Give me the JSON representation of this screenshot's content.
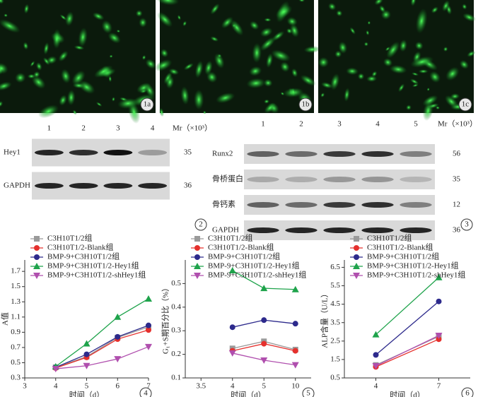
{
  "figure": {
    "images": [
      {
        "label": "1a"
      },
      {
        "label": "1b"
      },
      {
        "label": "1c"
      }
    ],
    "blots": [
      {
        "label": "2",
        "lanes": [
          "1",
          "2",
          "3",
          "4"
        ],
        "mr": "Mr（×10³）",
        "rows": [
          {
            "name": "Hey1",
            "mr": "35"
          },
          {
            "name": "GAPDH",
            "mr": "36"
          }
        ]
      },
      {
        "label": "3",
        "lanes": [
          "1",
          "2",
          "3",
          "4",
          "5"
        ],
        "mr": "Mr（×10³）",
        "rows": [
          {
            "name": "Runx2",
            "mr": "56"
          },
          {
            "name": "骨桥蛋白",
            "mr": "35"
          },
          {
            "name": "骨钙素",
            "mr": "12"
          },
          {
            "name": "GAPDH",
            "mr": "36"
          }
        ]
      }
    ]
  },
  "chart_data": [
    {
      "type": "line",
      "panel": "4",
      "ylabel": "A值",
      "xlabel": "时间（d）",
      "x": [
        4,
        5,
        6,
        7
      ],
      "xlim": [
        3,
        7
      ],
      "xticks": [
        3,
        4,
        5,
        6,
        7
      ],
      "ylim": [
        0.3,
        1.85
      ],
      "yticks": [
        0.3,
        0.5,
        0.7,
        0.9,
        1.1,
        1.3,
        1.5,
        1.7
      ],
      "series": [
        {
          "name": "C3H10T1/2组",
          "color": "#9a9a9a",
          "marker": "square",
          "values": [
            0.44,
            0.58,
            0.83,
            0.97
          ]
        },
        {
          "name": "C3H10T1/2-Blank组",
          "color": "#e5302d",
          "marker": "circle",
          "values": [
            0.43,
            0.57,
            0.81,
            0.93
          ]
        },
        {
          "name": "BMP-9+C3H10T1/2组",
          "color": "#2d2a8c",
          "marker": "circle",
          "values": [
            0.44,
            0.61,
            0.84,
            0.99
          ]
        },
        {
          "name": "BMP-9+C3H10T1/2-Hey1组",
          "color": "#1ea34b",
          "marker": "triangle",
          "values": [
            0.45,
            0.75,
            1.1,
            1.34
          ]
        },
        {
          "name": "BMP-9+C3H10T1/2-shHey1组",
          "color": "#b04fae",
          "marker": "down",
          "values": [
            0.42,
            0.46,
            0.55,
            0.71
          ]
        }
      ]
    },
    {
      "type": "line",
      "panel": "5",
      "ylabel": "G₁+S期百分比（%）",
      "xlabel": "时间（d）",
      "categories": [
        "3.5",
        "4",
        "5",
        "10"
      ],
      "ylim": [
        0.1,
        0.6
      ],
      "yticks": [
        0.1,
        0.2,
        0.3,
        0.4,
        0.5
      ],
      "series": [
        {
          "name": "C3H10T1/2组",
          "color": "#9a9a9a",
          "marker": "square",
          "values": [
            null,
            0.225,
            0.255,
            0.22
          ]
        },
        {
          "name": "C3H10T1/2-Blank组",
          "color": "#e5302d",
          "marker": "circle",
          "values": [
            null,
            0.215,
            0.245,
            0.215
          ]
        },
        {
          "name": "BMP-9+C3H10T1/2组",
          "color": "#2d2a8c",
          "marker": "circle",
          "values": [
            null,
            0.315,
            0.345,
            0.33
          ]
        },
        {
          "name": "BMP-9+C3H10T1/2-Hey1组",
          "color": "#1ea34b",
          "marker": "triangle",
          "values": [
            null,
            0.555,
            0.48,
            0.475
          ]
        },
        {
          "name": "BMP-9+C3H10T1/2-shHey1组",
          "color": "#b04fae",
          "marker": "down",
          "values": [
            null,
            0.205,
            0.175,
            0.155
          ]
        }
      ]
    },
    {
      "type": "line",
      "panel": "6",
      "ylabel": "ALP含量（U/L）",
      "xlabel": "时间（d）",
      "categories": [
        "4",
        "7"
      ],
      "ylim": [
        0.5,
        6.9
      ],
      "yticks": [
        0.5,
        1.5,
        2.5,
        3.5,
        4.5,
        5.5,
        6.5
      ],
      "series": [
        {
          "name": "C3H10T1/2组",
          "color": "#9a9a9a",
          "marker": "square",
          "values": [
            1.2,
            2.75
          ]
        },
        {
          "name": "C3H10T1/2-Blank组",
          "color": "#e5302d",
          "marker": "circle",
          "values": [
            1.1,
            2.6
          ]
        },
        {
          "name": "BMP-9+C3H10T1/2组",
          "color": "#2d2a8c",
          "marker": "circle",
          "values": [
            1.75,
            4.65
          ]
        },
        {
          "name": "BMP-9+C3H10T1/2-Hey1组",
          "color": "#1ea34b",
          "marker": "triangle",
          "values": [
            2.85,
            5.95
          ]
        },
        {
          "name": "BMP-9+C3H10T1/2-shHey1组",
          "color": "#b04fae",
          "marker": "down",
          "values": [
            1.15,
            2.8
          ]
        }
      ]
    }
  ]
}
